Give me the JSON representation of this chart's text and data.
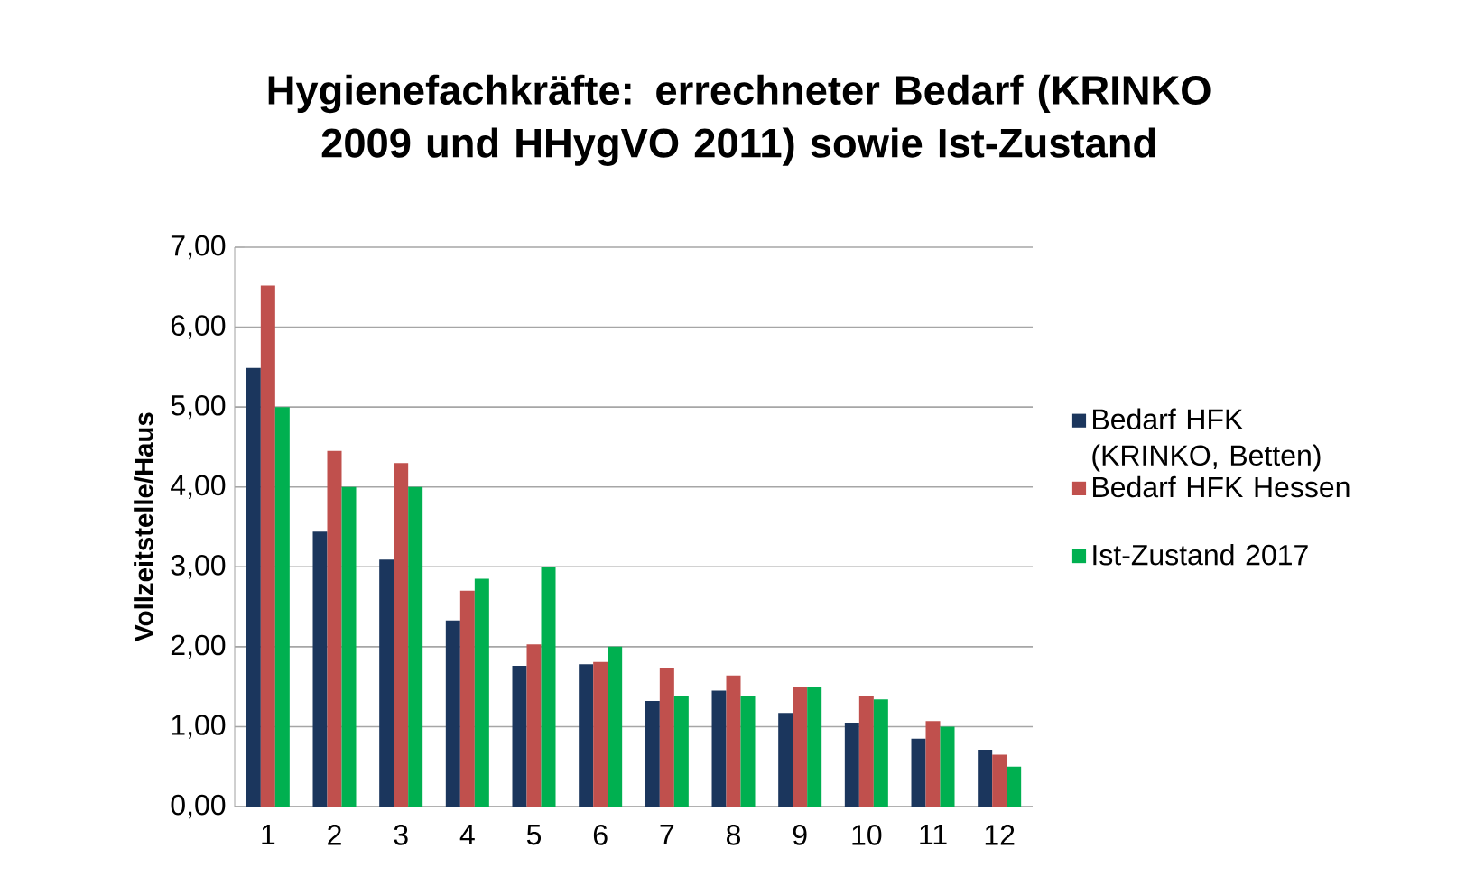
{
  "chart_data": {
    "type": "bar",
    "title": "Hygienefachkräfte: errechneter Bedarf (KRINKO 2009 und HHygVO 2011) sowie Ist-Zustand",
    "ylabel": "Vollzeitstelle/Haus",
    "categories": [
      "1",
      "2",
      "3",
      "4",
      "5",
      "6",
      "7",
      "8",
      "9",
      "10",
      "11",
      "12"
    ],
    "series": [
      {
        "name": "Bedarf HFK (KRINKO, Betten)",
        "color": "#1b365d",
        "values": [
          5.49,
          3.44,
          3.09,
          2.33,
          1.76,
          1.78,
          1.32,
          1.45,
          1.17,
          1.05,
          0.85,
          0.71
        ]
      },
      {
        "name": "Bedarf HFK Hessen",
        "color": "#c0504d",
        "values": [
          6.52,
          4.45,
          4.3,
          2.7,
          2.03,
          1.81,
          1.74,
          1.64,
          1.49,
          1.39,
          1.07,
          0.65
        ]
      },
      {
        "name": "Ist-Zustand 2017",
        "color": "#00b050",
        "values": [
          5.0,
          4.0,
          4.0,
          2.85,
          3.0,
          2.0,
          1.39,
          1.39,
          1.49,
          1.34,
          1.0,
          0.5
        ]
      }
    ],
    "ylim": [
      0,
      7
    ],
    "yticks": [
      {
        "value": 0,
        "label": "0,00"
      },
      {
        "value": 1,
        "label": "1,00"
      },
      {
        "value": 2,
        "label": "2,00"
      },
      {
        "value": 3,
        "label": "3,00"
      },
      {
        "value": 4,
        "label": "4,00"
      },
      {
        "value": 5,
        "label": "5,00"
      },
      {
        "value": 6,
        "label": "6,00"
      },
      {
        "value": 7,
        "label": "7,00"
      }
    ],
    "grid": "y",
    "legend": "right"
  }
}
